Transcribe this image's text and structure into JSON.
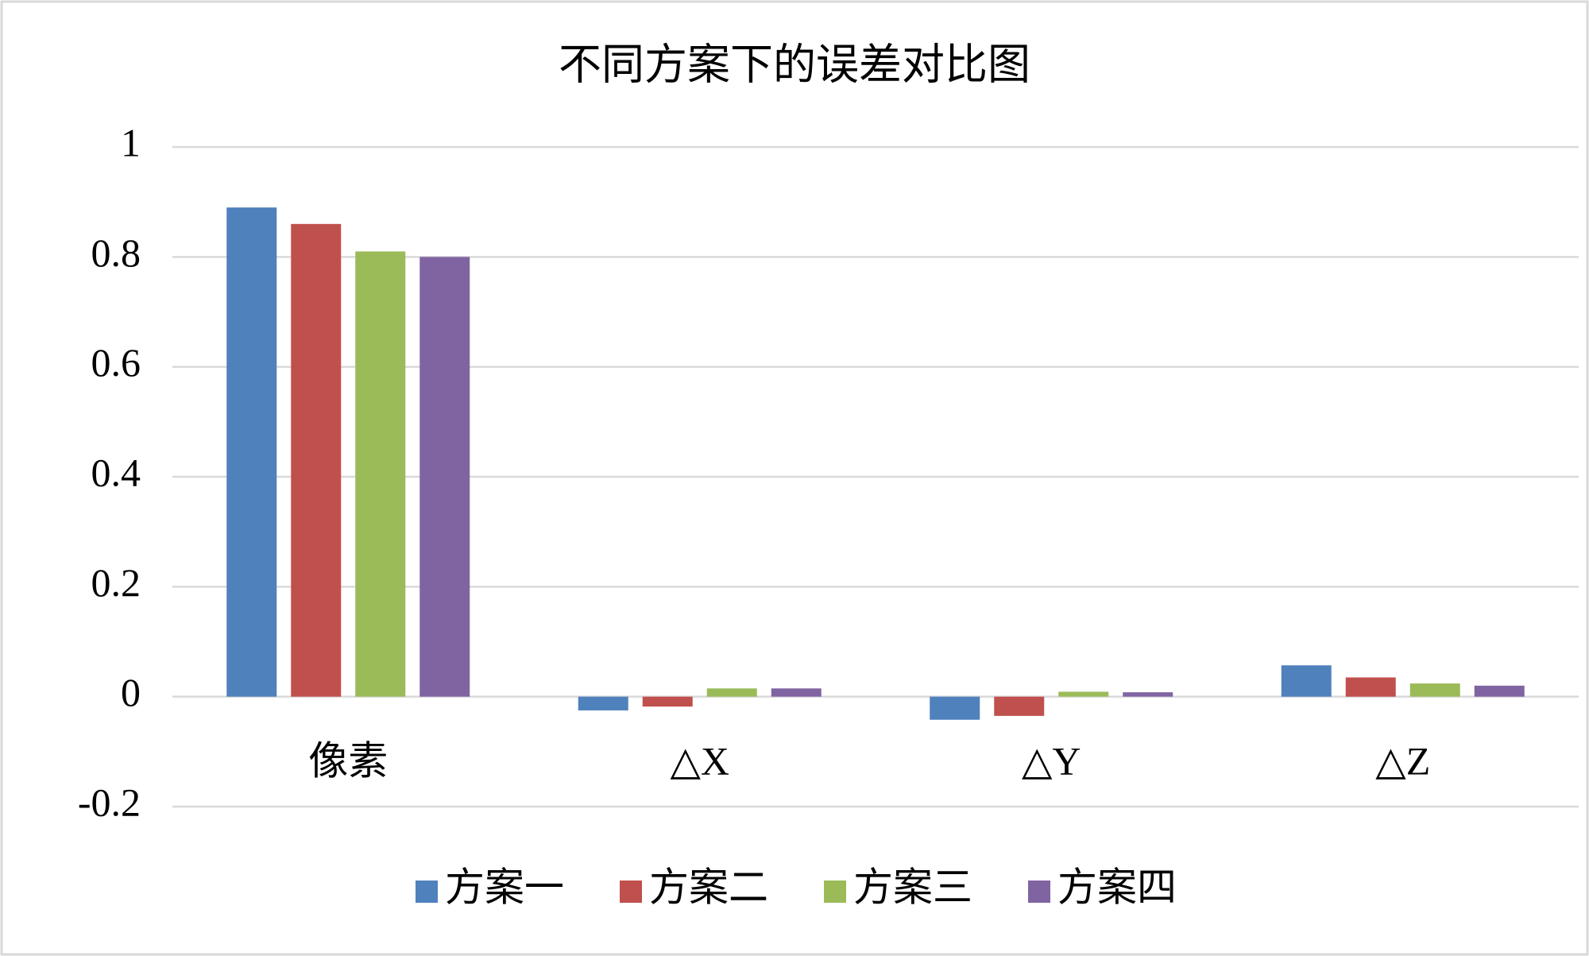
{
  "chart_data": {
    "type": "bar",
    "title": "不同方案下的误差对比图",
    "categories": [
      "像素",
      "△X",
      "△Y",
      "△Z"
    ],
    "series": [
      {
        "name": "方案一",
        "color": "#4f81bd",
        "values": [
          0.89,
          -0.025,
          -0.042,
          0.057
        ]
      },
      {
        "name": "方案二",
        "color": "#c0504d",
        "values": [
          0.86,
          -0.018,
          -0.035,
          0.035
        ]
      },
      {
        "name": "方案三",
        "color": "#9bbb59",
        "values": [
          0.81,
          0.015,
          0.009,
          0.024
        ]
      },
      {
        "name": "方案四",
        "color": "#8064a2",
        "values": [
          0.8,
          0.015,
          0.008,
          0.02
        ]
      }
    ],
    "ylim": [
      -0.2,
      1
    ],
    "yticks": [
      -0.2,
      0,
      0.2,
      0.4,
      0.6,
      0.8,
      1
    ],
    "grid": true,
    "legend": "bottom"
  }
}
